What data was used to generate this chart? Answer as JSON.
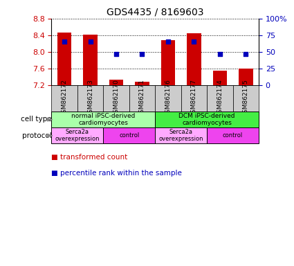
{
  "title": "GDS4435 / 8169603",
  "samples": [
    "GSM862172",
    "GSM862173",
    "GSM862170",
    "GSM862171",
    "GSM862176",
    "GSM862177",
    "GSM862174",
    "GSM862175"
  ],
  "bar_values": [
    8.47,
    8.41,
    7.32,
    7.27,
    8.28,
    8.45,
    7.55,
    7.6
  ],
  "bar_base": 7.2,
  "percentile_values": [
    65,
    65,
    47,
    47,
    65,
    65,
    47,
    47
  ],
  "ylim": [
    7.2,
    8.8
  ],
  "ylim_right": [
    0,
    100
  ],
  "yticks_left": [
    7.2,
    7.6,
    8.0,
    8.4,
    8.8
  ],
  "yticks_right": [
    0,
    25,
    50,
    75,
    100
  ],
  "bar_color": "#cc0000",
  "dot_color": "#0000bb",
  "bar_width": 0.55,
  "cell_type_groups": [
    {
      "label": "normal iPSC-derived\ncardiomyocytes",
      "start": 0,
      "end": 3,
      "color": "#aaffaa"
    },
    {
      "label": "DCM iPSC-derived\ncardiomyocytes",
      "start": 4,
      "end": 7,
      "color": "#44ee44"
    }
  ],
  "protocol_groups": [
    {
      "label": "Serca2a\noverexpression",
      "start": 0,
      "end": 1,
      "color": "#ffaaff"
    },
    {
      "label": "control",
      "start": 2,
      "end": 3,
      "color": "#ee44ee"
    },
    {
      "label": "Serca2a\noverexpression",
      "start": 4,
      "end": 5,
      "color": "#ffaaff"
    },
    {
      "label": "control",
      "start": 6,
      "end": 7,
      "color": "#ee44ee"
    }
  ],
  "legend_bar_label": "transformed count",
  "legend_dot_label": "percentile rank within the sample",
  "xlabel_cell_type": "cell type",
  "xlabel_protocol": "protocol",
  "bg_color": "#ffffff",
  "tick_label_color_left": "#cc0000",
  "tick_label_color_right": "#0000bb",
  "sample_bg_color": "#cccccc",
  "title_fontsize": 10
}
